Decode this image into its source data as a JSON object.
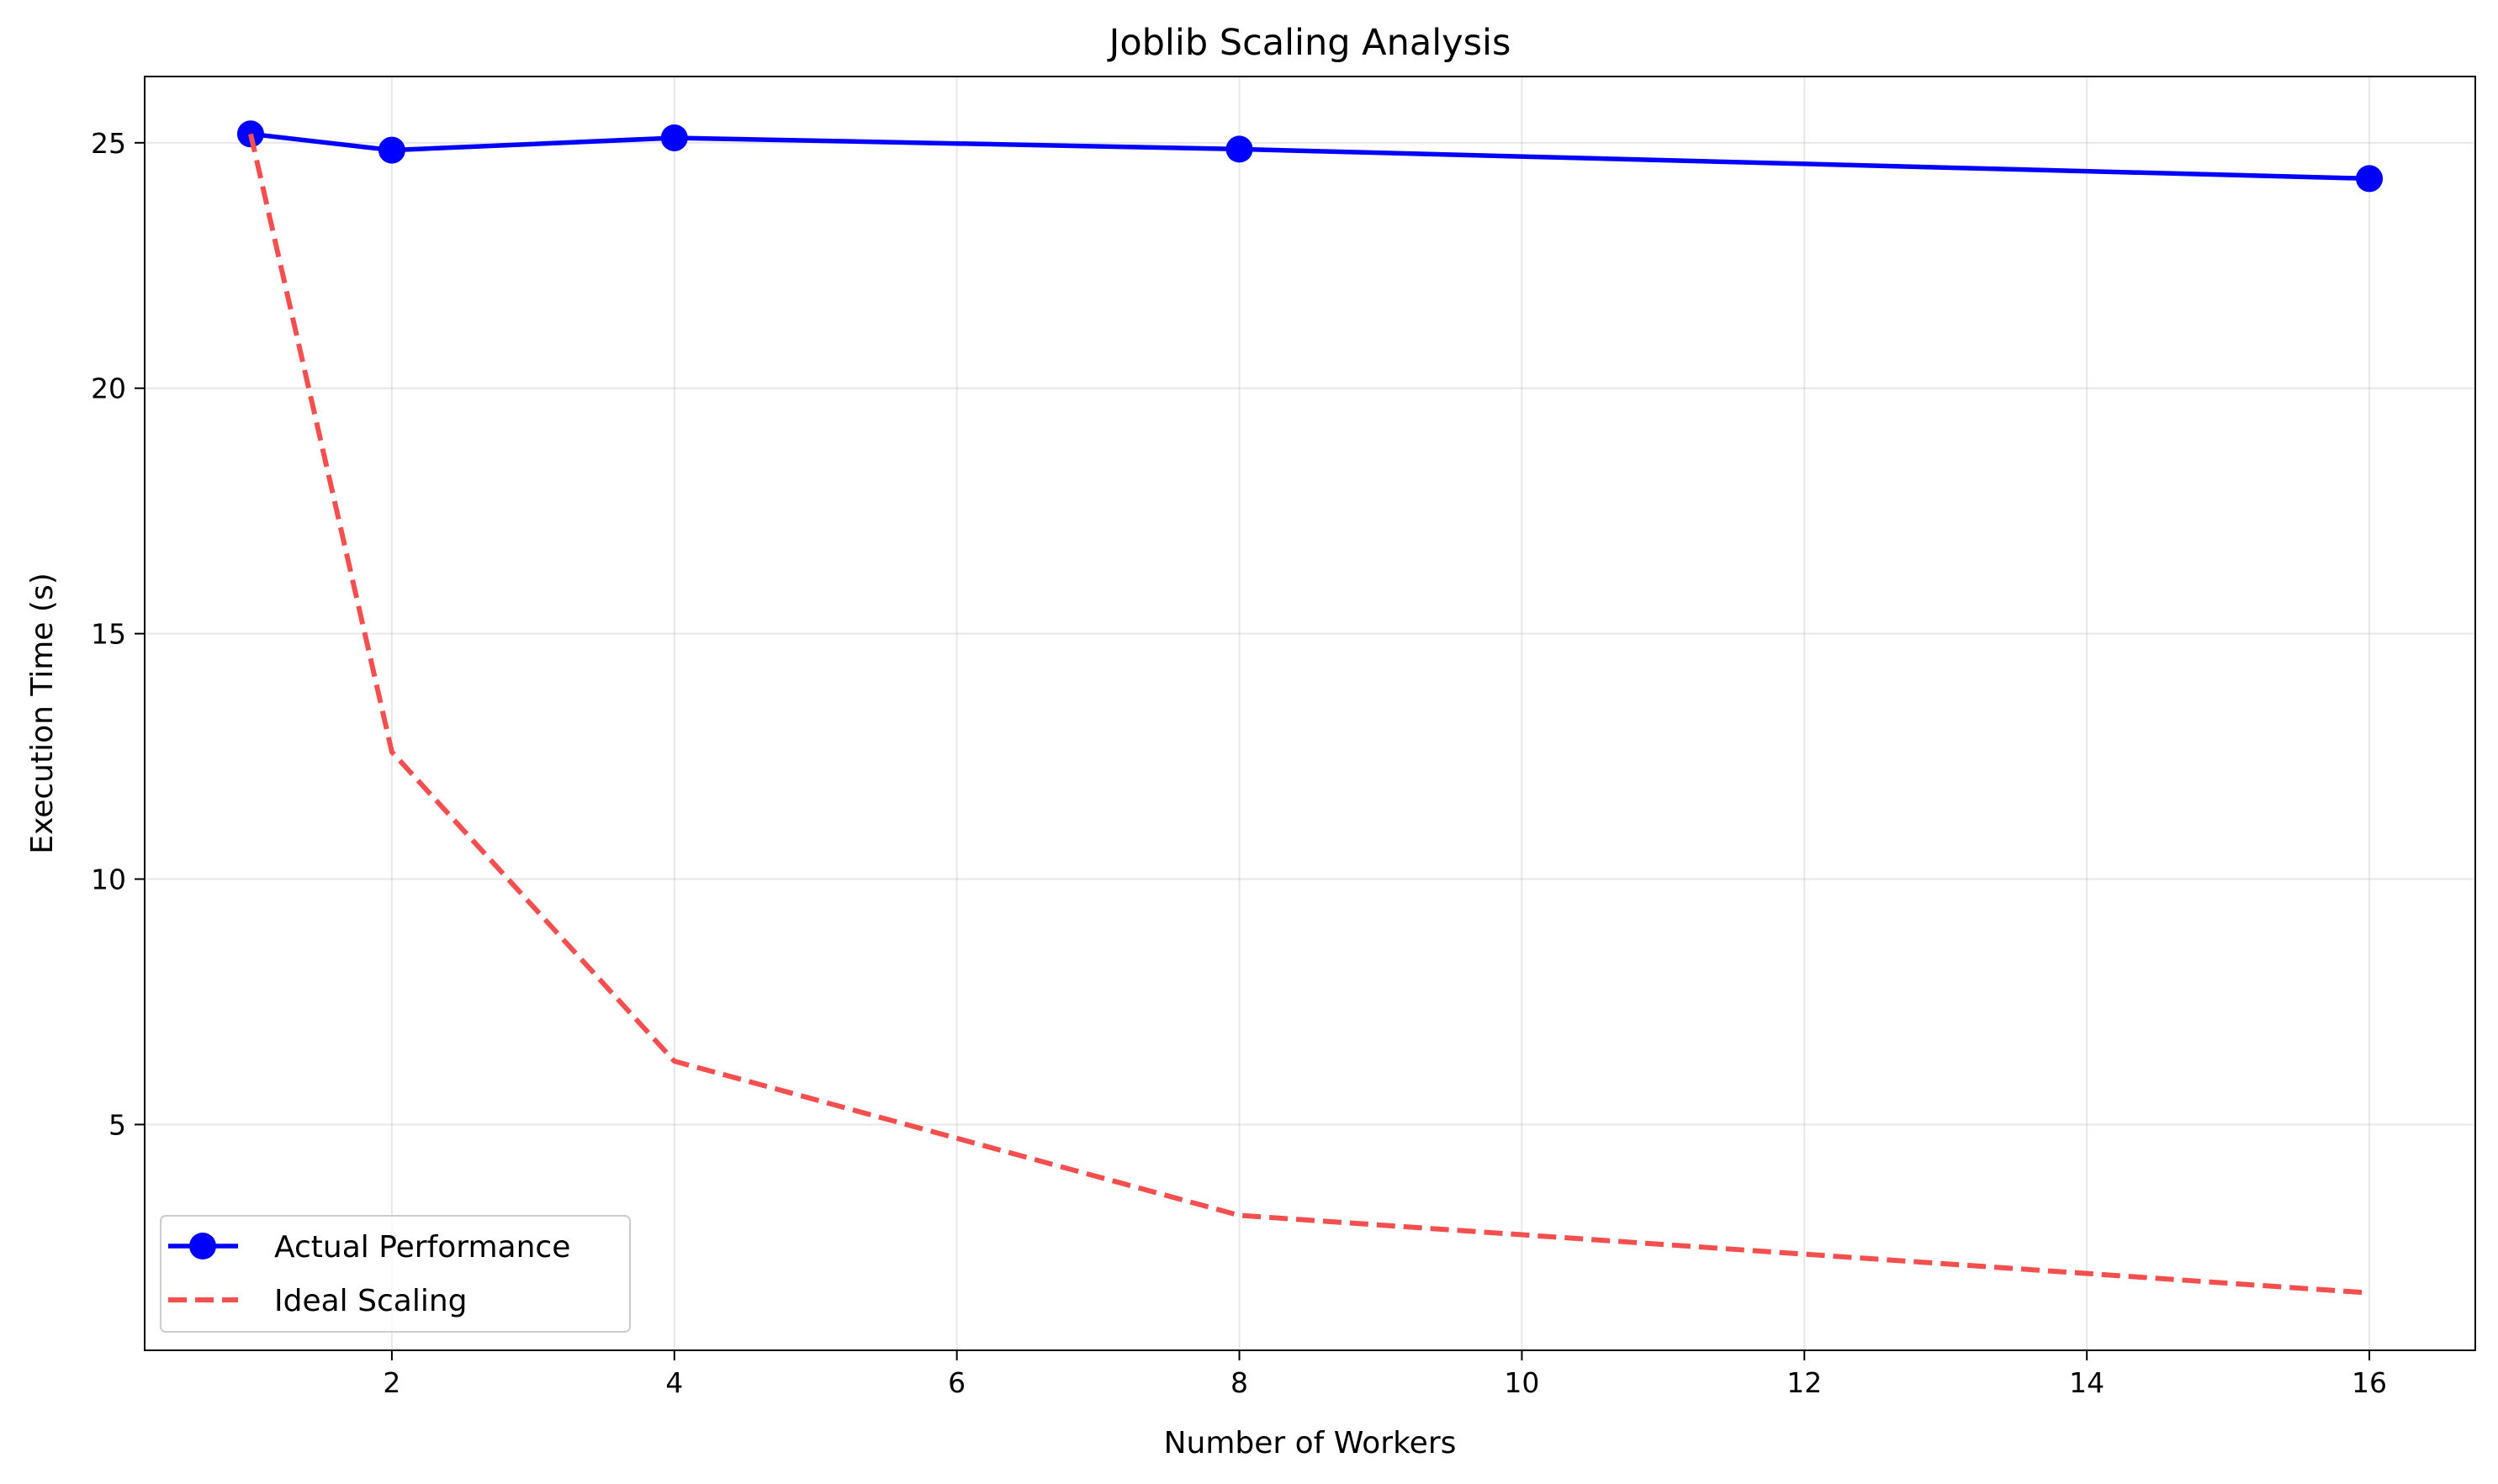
{
  "chart_data": {
    "type": "line",
    "title": "Joblib Scaling Analysis",
    "xlabel": "Number of Workers",
    "ylabel": "Execution Time (s)",
    "xlim": [
      0.25,
      16.75
    ],
    "ylim": [
      0.4,
      26.35
    ],
    "x_ticks": [
      2,
      4,
      6,
      8,
      10,
      12,
      14,
      16
    ],
    "y_ticks": [
      5,
      10,
      15,
      20,
      25
    ],
    "grid": true,
    "legend_position": "lower-left",
    "series": [
      {
        "name": "Actual Performance",
        "color": "#0000ff",
        "style": "solid",
        "marker": "circle",
        "x": [
          1,
          2,
          4,
          8,
          16
        ],
        "y": [
          25.18,
          24.85,
          25.1,
          24.87,
          24.27
        ]
      },
      {
        "name": "Ideal Scaling",
        "color": "#f44f4f",
        "style": "dashed",
        "marker": "none",
        "x": [
          1,
          2,
          4,
          8,
          16
        ],
        "y": [
          25.18,
          12.59,
          6.29,
          3.15,
          1.57
        ]
      }
    ]
  }
}
